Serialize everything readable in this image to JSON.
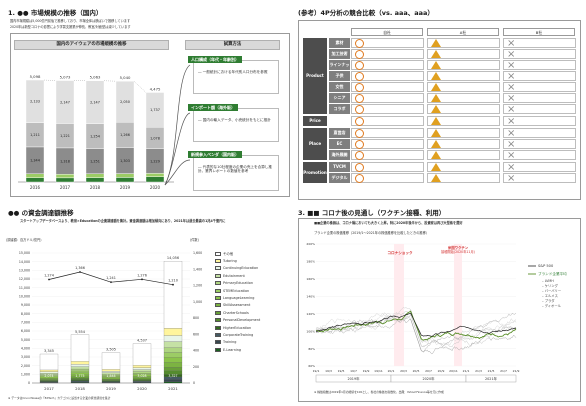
{
  "sec1": {
    "title": "1. ●● 市場規模の推移（国内）",
    "desc1": "国内市場規模は5,000億円前後で推移しており、市場全体は横ばいで推移しています",
    "desc2": "2020年は新型コロナの影響により学習支援業が伸長、教室/対面型は減少しています",
    "chart_title": "国内のアイウェアの市場規模の推移",
    "method_title": "試算方法",
    "years": [
      "2016",
      "2017",
      "2018",
      "2019",
      "2020"
    ],
    "totals": [
      "5,098",
      "5,073",
      "5,063",
      "5,040",
      "4,475"
    ],
    "steps": [
      {
        "label": "人口構成（年代・年齢別）",
        "text": "― 一般統計における年代別人口分布を参照"
      },
      {
        "label": "インポート額（海外販）",
        "text": "― 国内の輸入データ、小売統計をもとに推計"
      },
      {
        "label": "新規参入ベンダ（国内販）",
        "text": "― 代表的な10社程度の企業の売上を合算し推計。業界レポートの数値を参考"
      }
    ]
  },
  "chart1": {
    "type": "bar",
    "categories": [
      "2016",
      "2017",
      "2018",
      "2019",
      "2020"
    ],
    "series": [
      {
        "values": [
          212,
          207,
          218,
          227,
          263
        ]
      },
      {
        "values": [
          198,
          180,
          193,
          194,
          168
        ]
      },
      {
        "values": [
          1344,
          1318,
          1251,
          1303,
          1229
        ]
      },
      {
        "values": [
          1211,
          1221,
          1254,
          1266,
          1078
        ]
      },
      {
        "values": [
          2133,
          2147,
          2147,
          2050,
          1737
        ]
      }
    ],
    "totals": [
      5098,
      5073,
      5063,
      5040,
      4475
    ],
    "colors": [
      "#2e7d32",
      "#9ccc65",
      "#8c8c8c",
      "#bdbdbd",
      "#e0e0e0"
    ]
  },
  "sec2": {
    "title": "●● の資金調達額推移",
    "desc": "スタートアップデータベースより、教育×Educationの企業調達額を集計。資金調達額は増加傾向にあり、2021年は過去最高の1兆4千億円に",
    "ylabel_left": "(調達額：百万ドル/億円)",
    "ylabel_right": "(件数)",
    "yticks": [
      "0",
      "1,000",
      "2,000",
      "3,000",
      "4,000",
      "5,000",
      "6,000",
      "7,000",
      "8,000",
      "9,000",
      "10,000",
      "11,000",
      "12,000",
      "13,000",
      "14,000",
      "15,000"
    ],
    "legend": [
      "その他",
      "Tutoring",
      "ContinuingEducation",
      "Edutainment",
      "PrimaryEducation",
      "STEMEducation",
      "LanguageLearning",
      "SkillAssessment",
      "CharterSchools",
      "PersonalDevelopment",
      "HigherEducation",
      "CorporateTraining",
      "Training",
      "E-Learning"
    ],
    "footnote": "※ データはCrunchbaseの「EdTech」カテゴリに該当する企業の資金調達を集計"
  },
  "chart2": {
    "type": "bar",
    "categories": [
      "2017",
      "2018",
      "2019",
      "2020",
      "2021"
    ],
    "totals": [
      3345,
      5554,
      3505,
      4537,
      14056
    ],
    "count": [
      1274,
      1366,
      1241,
      1276,
      1210
    ],
    "total_labels": [
      "3,345",
      "5,554",
      "3,505",
      "4,537",
      "14,056"
    ],
    "count_labels": [
      "1,274",
      "1,366",
      "1,241",
      "1,276",
      "1,210"
    ],
    "base_values": [
      "2,074",
      "1,775",
      "1,848",
      "3,028",
      "3,327"
    ],
    "ylim": [
      0,
      15000
    ],
    "colors": [
      "#ffffff",
      "#fff59d",
      "#e8f5e9",
      "#c5e1a5",
      "#aed581",
      "#9ccc65",
      "#8bc34a",
      "#7cb342",
      "#689f38",
      "#558b2f",
      "#33691e",
      "#455a64",
      "#37474f",
      "#1b5e20"
    ]
  },
  "sec3": {
    "title": "(参考）4P分析の競合比較（vs. aaa、aaa）",
    "col_headers": [
      "",
      "自社",
      "A社",
      "B社"
    ],
    "groups": [
      {
        "name": "Product",
        "rows": [
          "素材",
          "加工技術",
          "ラインナップ",
          "子供",
          "女性",
          "シニア",
          "コラボ"
        ]
      },
      {
        "name": "Price",
        "rows": [
          ""
        ]
      },
      {
        "name": "Place",
        "rows": [
          "直営店",
          "EC",
          "海外展開"
        ]
      },
      {
        "name": "Promotion",
        "rows": [
          "TVCM",
          "デジタル(SNS)"
        ]
      }
    ],
    "marks": [
      "○",
      "△",
      "×"
    ]
  },
  "sec4": {
    "title": "3. ■■ コロナ後の見通し（ワクチン接種、利用）",
    "desc": "■■企業の株価は、コロナ禍においても大きく上昇。特に2020年後半から、投資家は再び大型株を選好",
    "chart_title": "ブランド企業の株価推移（2019/1〜2021年の株価推移を比較したときの推移）",
    "annot1": "コロナショック",
    "annot2": "米国ワクチン\n接種開始(2020年11月)",
    "legend_sp": "S&P 500",
    "legend_brand": "ブランド企業平均",
    "legend_items": [
      "LVMH",
      "ケリング",
      "バーバリー",
      "エルメス",
      "プラダ",
      "ディオール"
    ],
    "x_labels": [
      "19/1",
      "19/3",
      "19/5",
      "19/7",
      "19/9",
      "19/11",
      "20/1",
      "20/3",
      "20/5",
      "20/7",
      "20/9",
      "20/11",
      "21/1",
      "21/3",
      "21/5",
      "21/7",
      "21/9"
    ],
    "year_labels": [
      "2019年",
      "2020年",
      "2021年"
    ],
    "y_labels": [
      "200%",
      "180%",
      "160%",
      "140%",
      "120%",
      "100%",
      "80%",
      "60%"
    ],
    "footnote": "※ 株価指数は2019年1月の終値を100とし、各社の株価を指数化。出典：Yahoo!Finance等を元に作成"
  }
}
